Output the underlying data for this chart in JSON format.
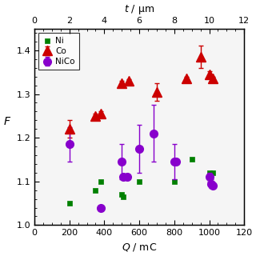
{
  "title_top": "t / μm",
  "xlabel": "Q / mC",
  "ylabel": "F",
  "xlim": [
    0,
    1200
  ],
  "ylim": [
    1.0,
    1.45
  ],
  "xticks_bottom": [
    0,
    200,
    400,
    600,
    800,
    1000,
    1200
  ],
  "xticks_top_labels": [
    0,
    2,
    4,
    6,
    8,
    10,
    12
  ],
  "xticks_top_pos": [
    0,
    200,
    400,
    600,
    800,
    1000,
    1200
  ],
  "yticks": [
    1.0,
    1.1,
    1.2,
    1.3,
    1.4
  ],
  "ni": {
    "x": [
      200,
      350,
      380,
      500,
      510,
      600,
      800,
      900,
      1000,
      1020
    ],
    "y": [
      1.05,
      1.08,
      1.1,
      1.07,
      1.065,
      1.1,
      1.1,
      1.15,
      1.12,
      1.12
    ],
    "color": "#008000",
    "marker": "s",
    "markersize": 6,
    "label": "Ni"
  },
  "co": {
    "x": [
      200,
      350,
      380,
      500,
      540,
      700,
      870,
      950,
      1000,
      1020
    ],
    "y": [
      1.22,
      1.25,
      1.255,
      1.325,
      1.33,
      1.305,
      1.335,
      1.385,
      1.345,
      1.335
    ],
    "yerr": [
      0.02,
      0.005,
      0.005,
      0.005,
      0.004,
      0.02,
      0.005,
      0.025,
      0.008,
      0.005
    ],
    "color": "#cc0000",
    "marker": "^",
    "markersize": 8,
    "label": "Co"
  },
  "nico": {
    "x": [
      200,
      380,
      500,
      510,
      530,
      600,
      680,
      800,
      810,
      1000,
      1010,
      1020
    ],
    "y": [
      1.185,
      1.04,
      1.145,
      1.11,
      1.11,
      1.175,
      1.21,
      1.145,
      1.145,
      1.11,
      1.095,
      1.09
    ],
    "yerr": [
      0.04,
      0.0,
      0.04,
      0.005,
      0.005,
      0.055,
      0.065,
      0.04,
      0.005,
      0.01,
      0.01,
      0.005
    ],
    "color": "#8800cc",
    "marker": "o",
    "markersize": 7,
    "label": "NiCo"
  },
  "figsize": [
    3.2,
    3.2
  ],
  "dpi": 100,
  "bg_color": "#f5f5f5"
}
